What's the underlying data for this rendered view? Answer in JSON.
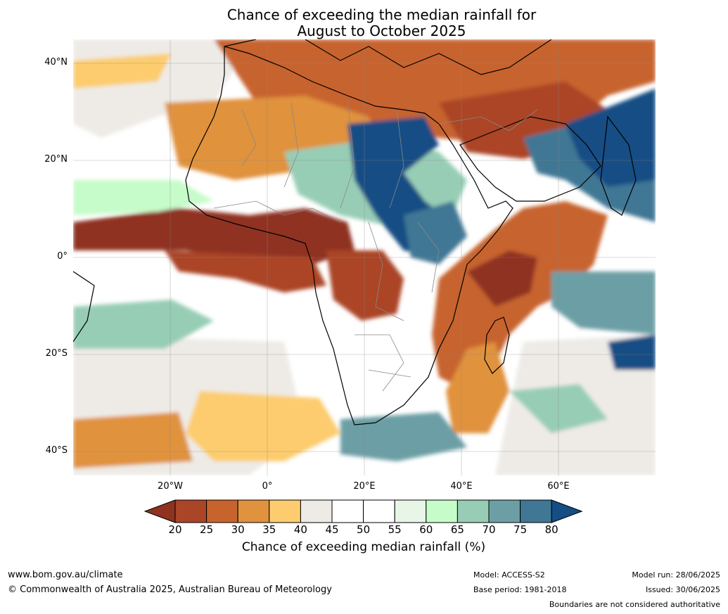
{
  "title": {
    "line1": "Chance of exceeding the median rainfall for",
    "line2": "August to October 2025"
  },
  "map": {
    "lat_labels": [
      "40°N",
      "20°N",
      "0°",
      "20°S",
      "40°S"
    ],
    "lon_labels": [
      "20°W",
      "0°",
      "20°E",
      "40°E",
      "60°E"
    ],
    "extent": {
      "lon_min": -40,
      "lon_max": 80,
      "lat_min": -45,
      "lat_max": 45
    },
    "grid_lines": true
  },
  "colorbar": {
    "title": "Chance of exceeding median rainfall (%)",
    "ticks": [
      "20",
      "25",
      "30",
      "35",
      "40",
      "45",
      "50",
      "55",
      "60",
      "65",
      "70",
      "75",
      "80"
    ],
    "colors": [
      "#8f3220",
      "#ab4527",
      "#c7642e",
      "#e0923e",
      "#fccc6e",
      "#eeebe6",
      "#ffffff",
      "#ffffff",
      "#e7f6e7",
      "#c6fcc9",
      "#97cdb5",
      "#6c9fa5",
      "#3f7794",
      "#144e84"
    ],
    "extend": "both"
  },
  "regions": [
    {
      "name": "sahel-dry-band",
      "category": "20"
    },
    {
      "name": "central-africa-wet",
      "category": "80"
    },
    {
      "name": "arabia-india-wet",
      "category": "80"
    },
    {
      "name": "mediterranean-dry",
      "category": "30"
    },
    {
      "name": "east-africa-dry",
      "category": "25"
    }
  ],
  "footer": {
    "website": "www.bom.gov.au/climate",
    "copyright": "© Commonwealth of Australia 2025, Australian Bureau of Meteorology",
    "model": "Model: ACCESS-S2",
    "base_period": "Base period: 1981-2018",
    "model_run": "Model run: 28/06/2025",
    "issued": "Issued: 30/06/2025",
    "disclaimer": "Boundaries are not considered authoritative"
  }
}
